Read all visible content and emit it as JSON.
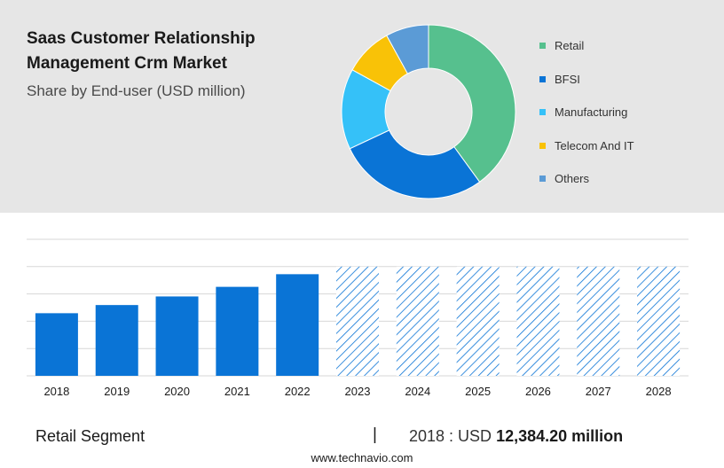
{
  "header": {
    "title": "Saas Customer Relationship Management Crm Market",
    "subtitle": "Share by End-user (USD million)"
  },
  "chart_data": [
    {
      "type": "pie",
      "variant": "donut",
      "slices": [
        {
          "label": "Retail",
          "value": 40,
          "color": "#56c08e"
        },
        {
          "label": "BFSI",
          "value": 28,
          "color": "#0a74d6"
        },
        {
          "label": "Manufacturing",
          "value": 15,
          "color": "#35c1f8"
        },
        {
          "label": "Telecom And IT",
          "value": 9,
          "color": "#f9c207"
        },
        {
          "label": "Others",
          "value": 8,
          "color": "#5b9bd6"
        }
      ],
      "legend_position": "right"
    },
    {
      "type": "bar",
      "categories": [
        "2018",
        "2019",
        "2020",
        "2021",
        "2022",
        "2023",
        "2024",
        "2025",
        "2026",
        "2027",
        "2028"
      ],
      "values": [
        12384.2,
        14000,
        15700,
        17600,
        20100,
        21600,
        21600,
        21600,
        21600,
        21600,
        21600
      ],
      "forecast_from": "2023",
      "ylim": [
        0,
        27000
      ],
      "grid": true,
      "bar_color": "#0a74d6",
      "forecast_pattern": "diagonal-hatch"
    }
  ],
  "footer": {
    "segment_label": "Retail Segment",
    "separator": "|",
    "year_text": "2018 : USD",
    "value_text": "12,384.20 million"
  },
  "source": {
    "site": "www.technavio.com"
  }
}
